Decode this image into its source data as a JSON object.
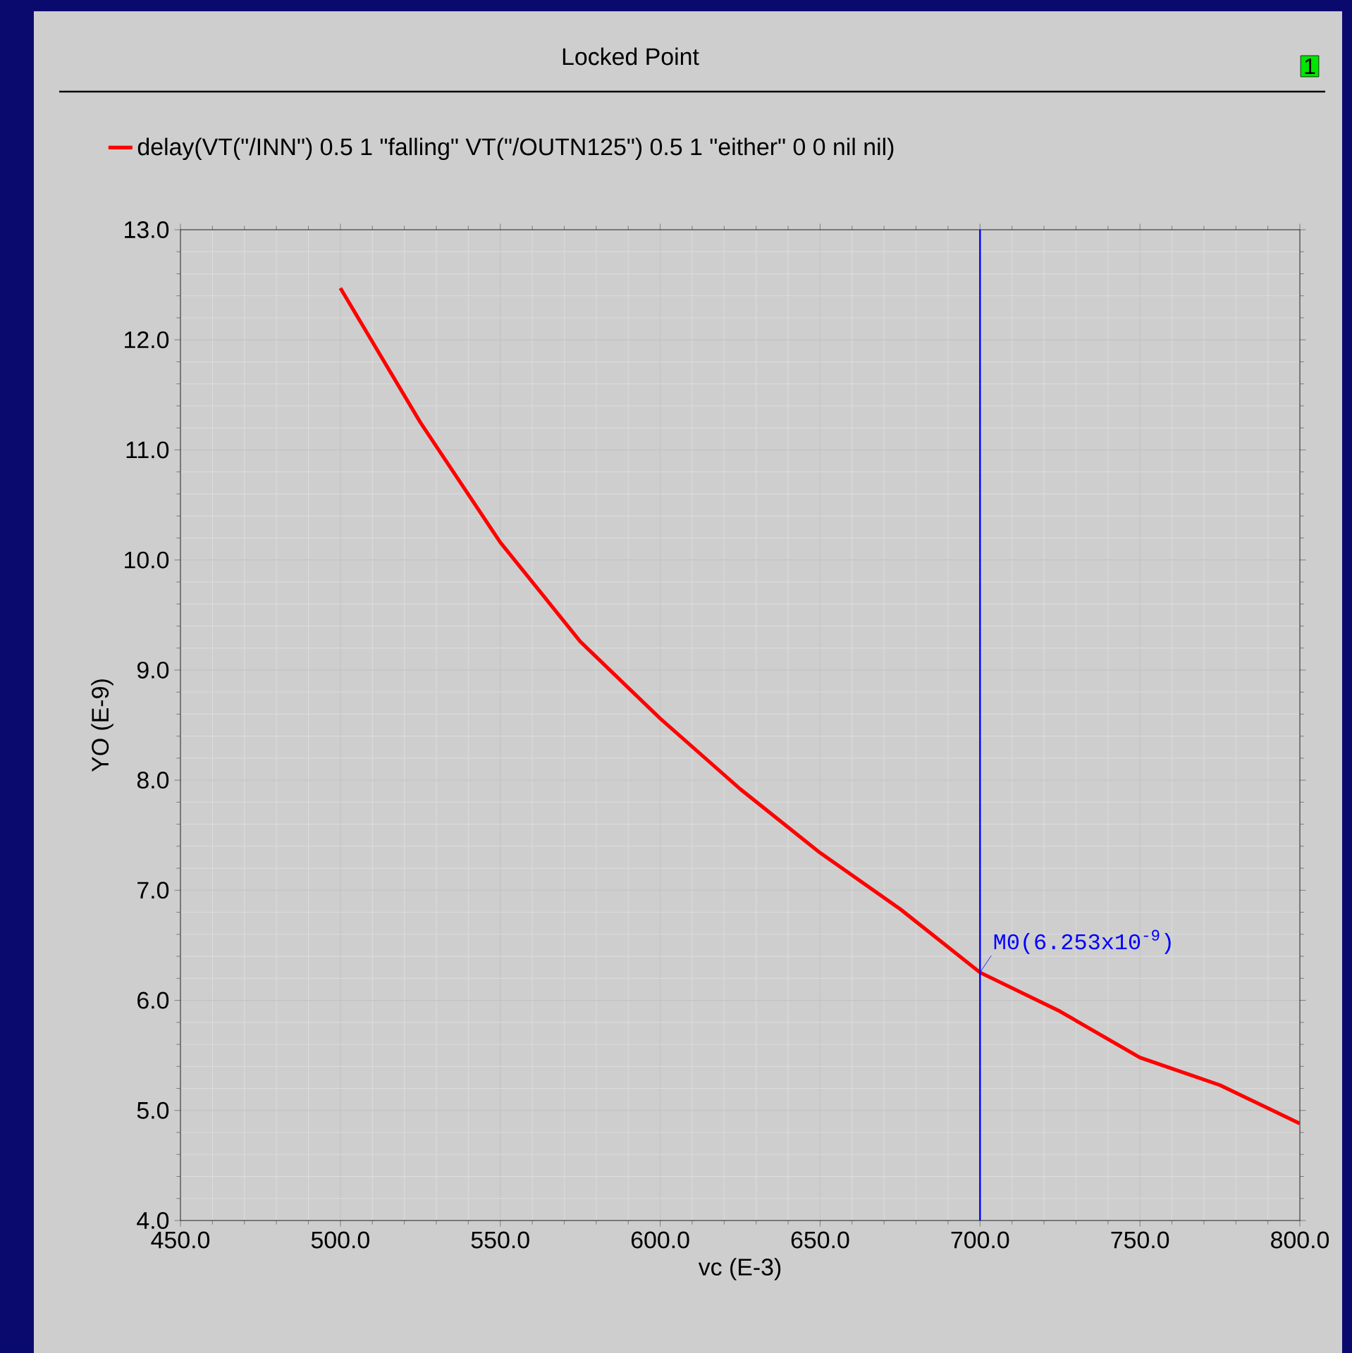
{
  "chart_data": {
    "type": "line",
    "title": "Locked Point",
    "xlabel": "vc (E-3)",
    "ylabel": "YO (E-9)",
    "x": [
      500,
      525,
      550,
      575,
      600,
      625,
      650,
      675,
      700,
      725,
      750,
      775,
      800
    ],
    "series": [
      {
        "name": "delay(VT(\"/INN\") 0.5 1 \"falling\" VT(\"/OUTN125\") 0.5 1 \"either\" 0 0 nil nil)",
        "color": "#ff0000",
        "values": [
          12.47,
          11.25,
          10.16,
          9.26,
          8.56,
          7.92,
          7.34,
          6.83,
          6.253,
          5.9,
          5.48,
          5.23,
          4.88
        ]
      }
    ],
    "xlim": [
      450,
      800
    ],
    "ylim": [
      4,
      13
    ],
    "xticks": [
      {
        "value": 450,
        "label": "450.0"
      },
      {
        "value": 500,
        "label": "500.0"
      },
      {
        "value": 550,
        "label": "550.0"
      },
      {
        "value": 600,
        "label": "600.0"
      },
      {
        "value": 650,
        "label": "650.0"
      },
      {
        "value": 700,
        "label": "700.0"
      },
      {
        "value": 750,
        "label": "750.0"
      },
      {
        "value": 800,
        "label": "800.0"
      }
    ],
    "yticks": [
      {
        "value": 4,
        "label": "4.0"
      },
      {
        "value": 5,
        "label": "5.0"
      },
      {
        "value": 6,
        "label": "6.0"
      },
      {
        "value": 7,
        "label": "7.0"
      },
      {
        "value": 8,
        "label": "8.0"
      },
      {
        "value": 9,
        "label": "9.0"
      },
      {
        "value": 10,
        "label": "10.0"
      },
      {
        "value": 11,
        "label": "11.0"
      },
      {
        "value": 12,
        "label": "12.0"
      },
      {
        "value": 13,
        "label": "13.0"
      }
    ],
    "grid": true,
    "legend": "top left",
    "ref_lines": [
      {
        "axis": "x",
        "value": 700,
        "color": "#0000ff"
      }
    ],
    "annotations": [
      {
        "text": "M0(6.253x10$^{-9}$)",
        "x": 700,
        "y": 6.253
      },
      "1"
    ]
  }
}
